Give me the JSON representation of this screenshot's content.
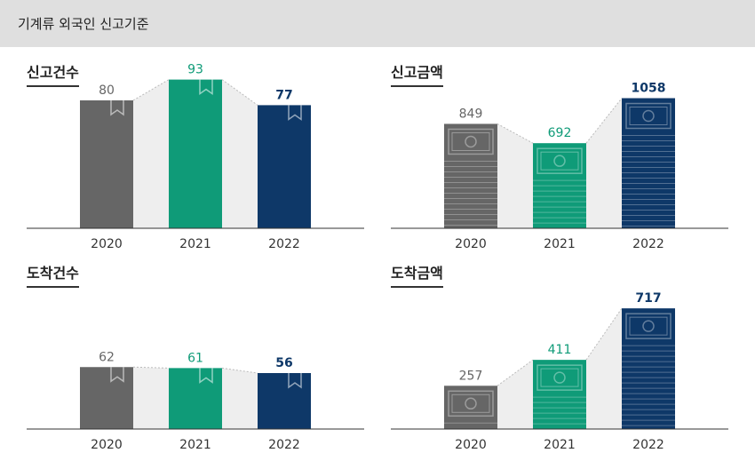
{
  "header": {
    "title": "기계류 외국인 신고기준"
  },
  "colors": {
    "y2020": "#666666",
    "y2021": "#0f9b78",
    "y2022": "#0e3868",
    "bridge": "#eeeeee",
    "axis": "#333333"
  },
  "chart_data": [
    {
      "type": "bar",
      "title": "신고건수",
      "categories": [
        "2020",
        "2021",
        "2022"
      ],
      "values": [
        80,
        93,
        77
      ],
      "icon": "bookmark-icon"
    },
    {
      "type": "bar",
      "title": "신고금액",
      "categories": [
        "2020",
        "2021",
        "2022"
      ],
      "values": [
        849,
        692,
        1058
      ],
      "icon": "banknote-icon"
    },
    {
      "type": "bar",
      "title": "도착건수",
      "categories": [
        "2020",
        "2021",
        "2022"
      ],
      "values": [
        62,
        61,
        56
      ],
      "icon": "bookmark-icon"
    },
    {
      "type": "bar",
      "title": "도착금액",
      "categories": [
        "2020",
        "2021",
        "2022"
      ],
      "values": [
        257,
        411,
        717
      ],
      "icon": "banknote-icon"
    }
  ]
}
